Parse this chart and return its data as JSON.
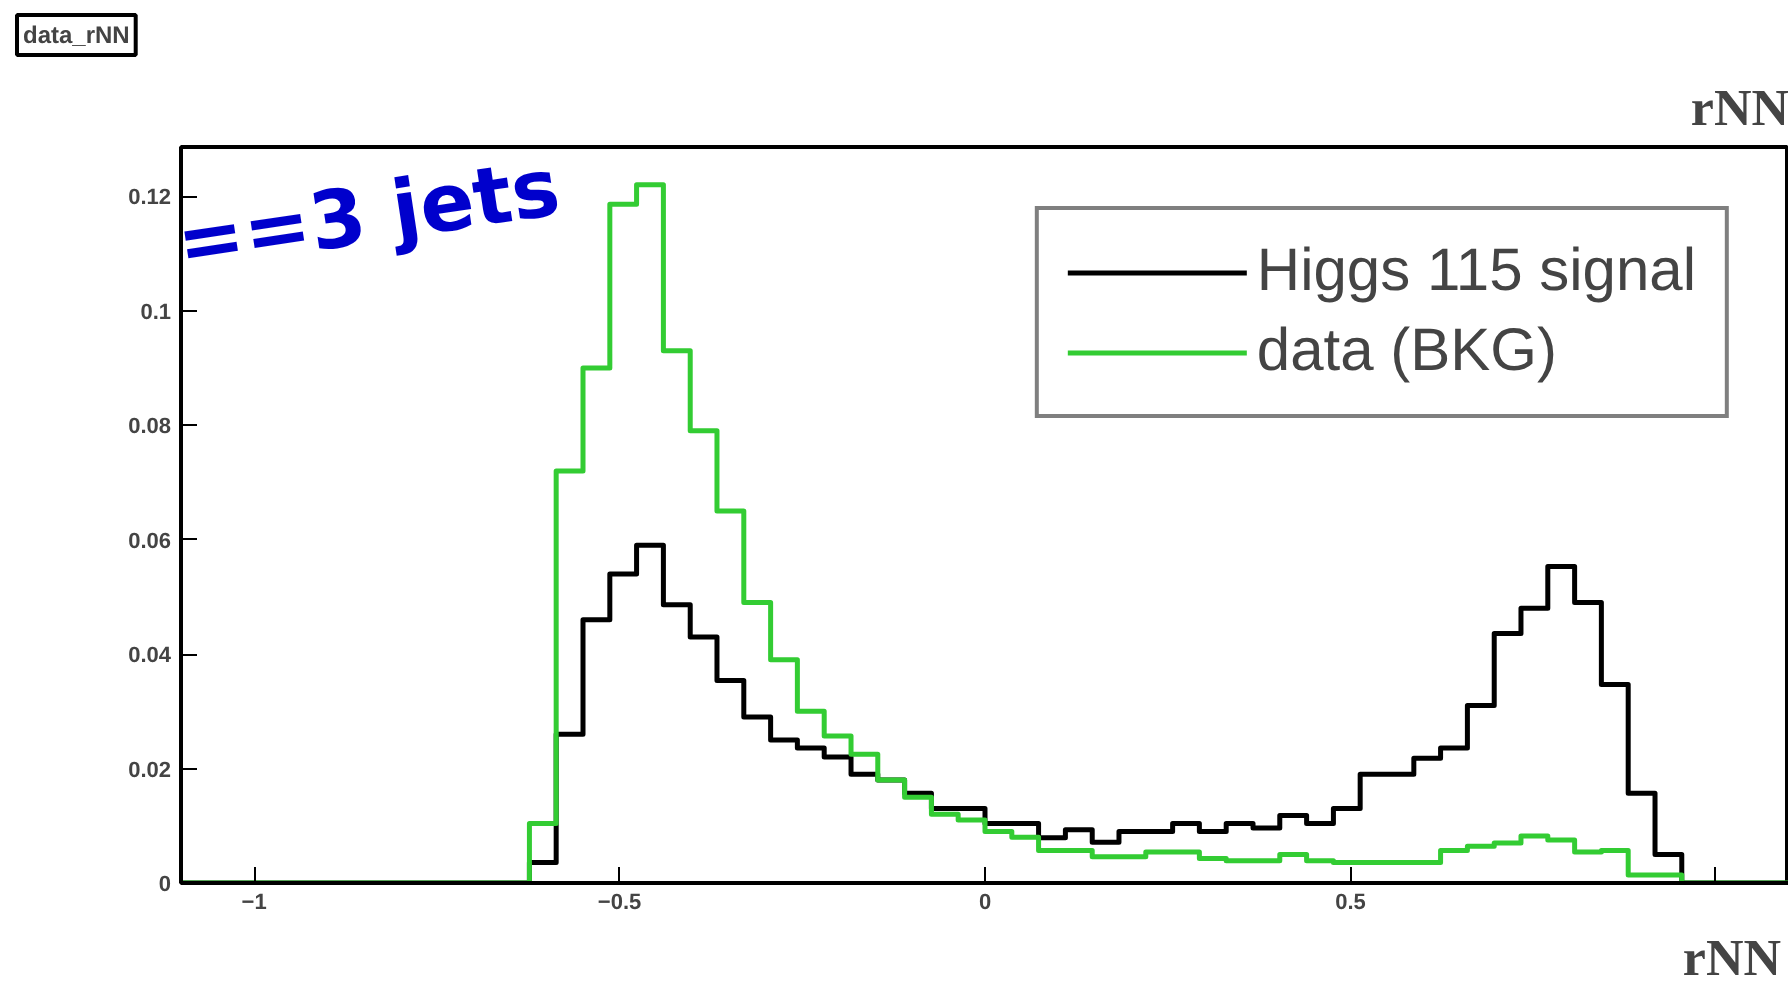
{
  "chart_data": {
    "type": "histogram",
    "title": "data_rNN",
    "xlabel": "rNN",
    "annotations": [
      "==3 jets",
      "rNN"
    ],
    "bins": [
      -1.1,
      -1.0633,
      -1.0267,
      -0.99,
      -0.9533,
      -0.9167,
      -0.88,
      -0.8433,
      -0.8067,
      -0.77,
      -0.7333,
      -0.6967,
      -0.66,
      -0.6233,
      -0.5867,
      -0.55,
      -0.5133,
      -0.4767,
      -0.44,
      -0.4033,
      -0.3667,
      -0.33,
      -0.2933,
      -0.2567,
      -0.22,
      -0.1833,
      -0.1467,
      -0.11,
      -0.0733,
      -0.0367,
      0,
      0.0367,
      0.0733,
      0.11,
      0.1467,
      0.1833,
      0.22,
      0.2567,
      0.2933,
      0.33,
      0.3667,
      0.4033,
      0.44,
      0.4767,
      0.5133,
      0.55,
      0.5867,
      0.6233,
      0.66,
      0.6967,
      0.7333,
      0.77,
      0.8067,
      0.8433,
      0.88,
      0.9167,
      0.9533,
      0.99,
      1.0267,
      1.0633,
      1.1
    ],
    "series": [
      {
        "name": "Higgs 115 signal",
        "color": "#000000",
        "values": [
          0,
          0,
          0,
          0,
          0,
          0,
          0,
          0,
          0,
          0,
          0,
          0,
          0,
          0.0036,
          0.026,
          0.046,
          0.054,
          0.059,
          0.0486,
          0.043,
          0.0354,
          0.029,
          0.025,
          0.0236,
          0.022,
          0.019,
          0.018,
          0.0157,
          0.013,
          0.013,
          0.0104,
          0.0104,
          0.0079,
          0.0093,
          0.0071,
          0.009,
          0.009,
          0.0104,
          0.009,
          0.0104,
          0.0096,
          0.0118,
          0.0104,
          0.013,
          0.019,
          0.019,
          0.0218,
          0.0236,
          0.031,
          0.0436,
          0.048,
          0.0553,
          0.049,
          0.0347,
          0.0157,
          0.005,
          0,
          0,
          0,
          0
        ]
      },
      {
        "name": "data (BKG)",
        "color": "#33cc33",
        "values": [
          0,
          0,
          0,
          0,
          0,
          0,
          0,
          0,
          0,
          0,
          0,
          0,
          0,
          0.0104,
          0.072,
          0.09,
          0.1186,
          0.122,
          0.093,
          0.079,
          0.065,
          0.049,
          0.039,
          0.03,
          0.0257,
          0.0225,
          0.018,
          0.015,
          0.012,
          0.011,
          0.009,
          0.008,
          0.0057,
          0.0057,
          0.0046,
          0.0046,
          0.0054,
          0.0054,
          0.0043,
          0.0039,
          0.0039,
          0.005,
          0.0039,
          0.0036,
          0.0036,
          0.0036,
          0.0036,
          0.0057,
          0.0064,
          0.007,
          0.0082,
          0.0075,
          0.0054,
          0.0057,
          0.0014,
          0.0014,
          0,
          0,
          0,
          0
        ]
      }
    ],
    "xlim": [
      -1.1,
      1.1
    ],
    "ylim": [
      0,
      0.1286
    ],
    "xticks": [
      -1,
      -0.5,
      0,
      0.5,
      {
        "value": 1,
        "label": null
      }
    ],
    "yticks": [
      0,
      0.02,
      0.04,
      0.06,
      0.08,
      0.1,
      0.12
    ],
    "grid": false,
    "legend": "top right",
    "line_style": "solid"
  }
}
